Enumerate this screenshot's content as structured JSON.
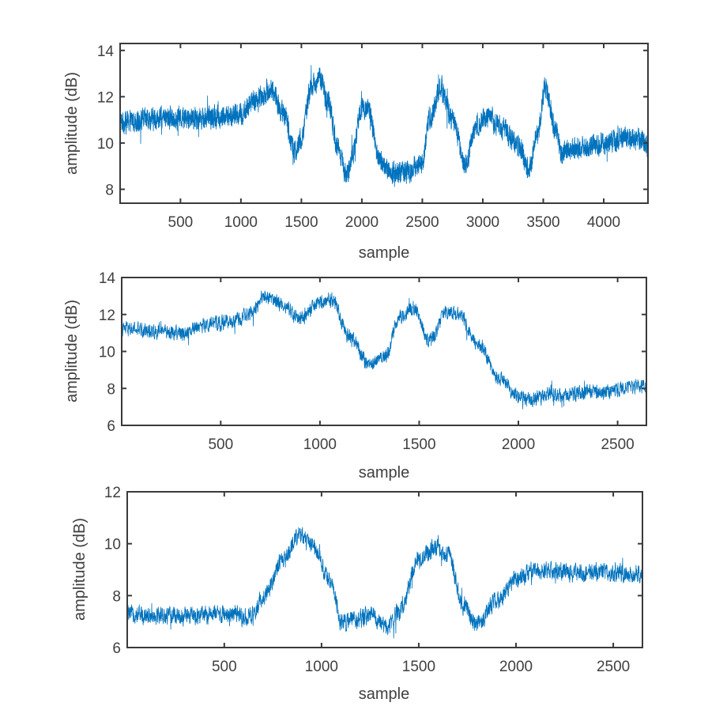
{
  "chart_data": [
    {
      "type": "line",
      "title": "",
      "xlabel": "sample",
      "ylabel": "amplitude (dB)",
      "xlim": [
        1,
        4366
      ],
      "ylim": [
        7.4,
        14.3
      ],
      "xticks": [
        500,
        1000,
        1500,
        2000,
        2500,
        3000,
        3500,
        4000
      ],
      "xtick_labels": [
        "500",
        "1000",
        "1500",
        "2000",
        "2500",
        "3000",
        "3500",
        "4000"
      ],
      "yticks": [
        8,
        10,
        12,
        14
      ],
      "ytick_labels": [
        "8",
        "10",
        "12",
        "14"
      ],
      "grid": false,
      "color": "#0072BD",
      "series": [
        {
          "name": "amplitude",
          "n_samples": 4366,
          "noise_db": 0.55,
          "trend_x": [
            1,
            200,
            500,
            800,
            1000,
            1100,
            1250,
            1350,
            1450,
            1500,
            1580,
            1650,
            1720,
            1800,
            1870,
            1930,
            2000,
            2050,
            2150,
            2250,
            2400,
            2500,
            2560,
            2650,
            2750,
            2850,
            2950,
            3050,
            3150,
            3300,
            3380,
            3450,
            3520,
            3600,
            3650,
            3800,
            4000,
            4200,
            4366
          ],
          "trend_y": [
            10.9,
            11.0,
            11.1,
            11.1,
            11.2,
            11.8,
            12.3,
            11.3,
            9.6,
            10.2,
            12.4,
            12.8,
            11.8,
            9.8,
            8.6,
            9.6,
            11.6,
            11.5,
            9.2,
            8.7,
            8.8,
            9.2,
            11.0,
            12.4,
            11.0,
            9.1,
            10.8,
            11.2,
            10.7,
            9.8,
            8.9,
            10.4,
            12.4,
            10.6,
            9.6,
            9.8,
            10.0,
            10.2,
            10.0
          ]
        }
      ]
    },
    {
      "type": "line",
      "title": "",
      "xlabel": "sample",
      "ylabel": "amplitude (dB)",
      "xlim": [
        1,
        2645
      ],
      "ylim": [
        6,
        14
      ],
      "xticks": [
        500,
        1000,
        1500,
        2000,
        2500
      ],
      "xtick_labels": [
        "500",
        "1000",
        "1500",
        "2000",
        "2500"
      ],
      "yticks": [
        6,
        8,
        10,
        12,
        14
      ],
      "ytick_labels": [
        "6",
        "8",
        "10",
        "12",
        "14"
      ],
      "grid": false,
      "color": "#0072BD",
      "series": [
        {
          "name": "amplitude",
          "n_samples": 2645,
          "noise_db": 0.45,
          "trend_x": [
            1,
            200,
            300,
            400,
            550,
            650,
            720,
            800,
            900,
            1000,
            1060,
            1150,
            1250,
            1330,
            1400,
            1470,
            1550,
            1650,
            1700,
            1800,
            1900,
            2000,
            2050,
            2200,
            2400,
            2645
          ],
          "trend_y": [
            11.2,
            11.1,
            11.0,
            11.4,
            11.6,
            12.0,
            13.0,
            12.6,
            11.8,
            12.6,
            12.8,
            10.8,
            9.3,
            9.8,
            11.8,
            12.4,
            10.6,
            12.2,
            12.0,
            10.4,
            8.6,
            7.6,
            7.4,
            7.7,
            7.8,
            8.1
          ]
        }
      ]
    },
    {
      "type": "line",
      "title": "",
      "xlabel": "sample",
      "ylabel": "amplitude (dB)",
      "xlim": [
        1,
        2650
      ],
      "ylim": [
        6,
        12
      ],
      "xticks": [
        500,
        1000,
        1500,
        2000,
        2500
      ],
      "xtick_labels": [
        "500",
        "1000",
        "1500",
        "2000",
        "2500"
      ],
      "yticks": [
        6,
        8,
        10,
        12
      ],
      "ytick_labels": [
        "6",
        "8",
        "10",
        "12"
      ],
      "grid": false,
      "color": "#0072BD",
      "series": [
        {
          "name": "amplitude",
          "n_samples": 2650,
          "noise_db": 0.4,
          "trend_x": [
            1,
            300,
            500,
            620,
            650,
            700,
            800,
            880,
            950,
            1050,
            1100,
            1200,
            1250,
            1330,
            1400,
            1500,
            1580,
            1650,
            1730,
            1800,
            1900,
            2000,
            2100,
            2300,
            2500,
            2650
          ],
          "trend_y": [
            7.3,
            7.2,
            7.3,
            7.2,
            7.2,
            8.0,
            9.3,
            10.3,
            10.0,
            8.5,
            7.0,
            7.1,
            7.3,
            6.8,
            7.4,
            9.4,
            9.8,
            9.6,
            7.6,
            6.9,
            7.8,
            8.6,
            9.0,
            8.9,
            8.9,
            8.8
          ]
        }
      ]
    }
  ]
}
